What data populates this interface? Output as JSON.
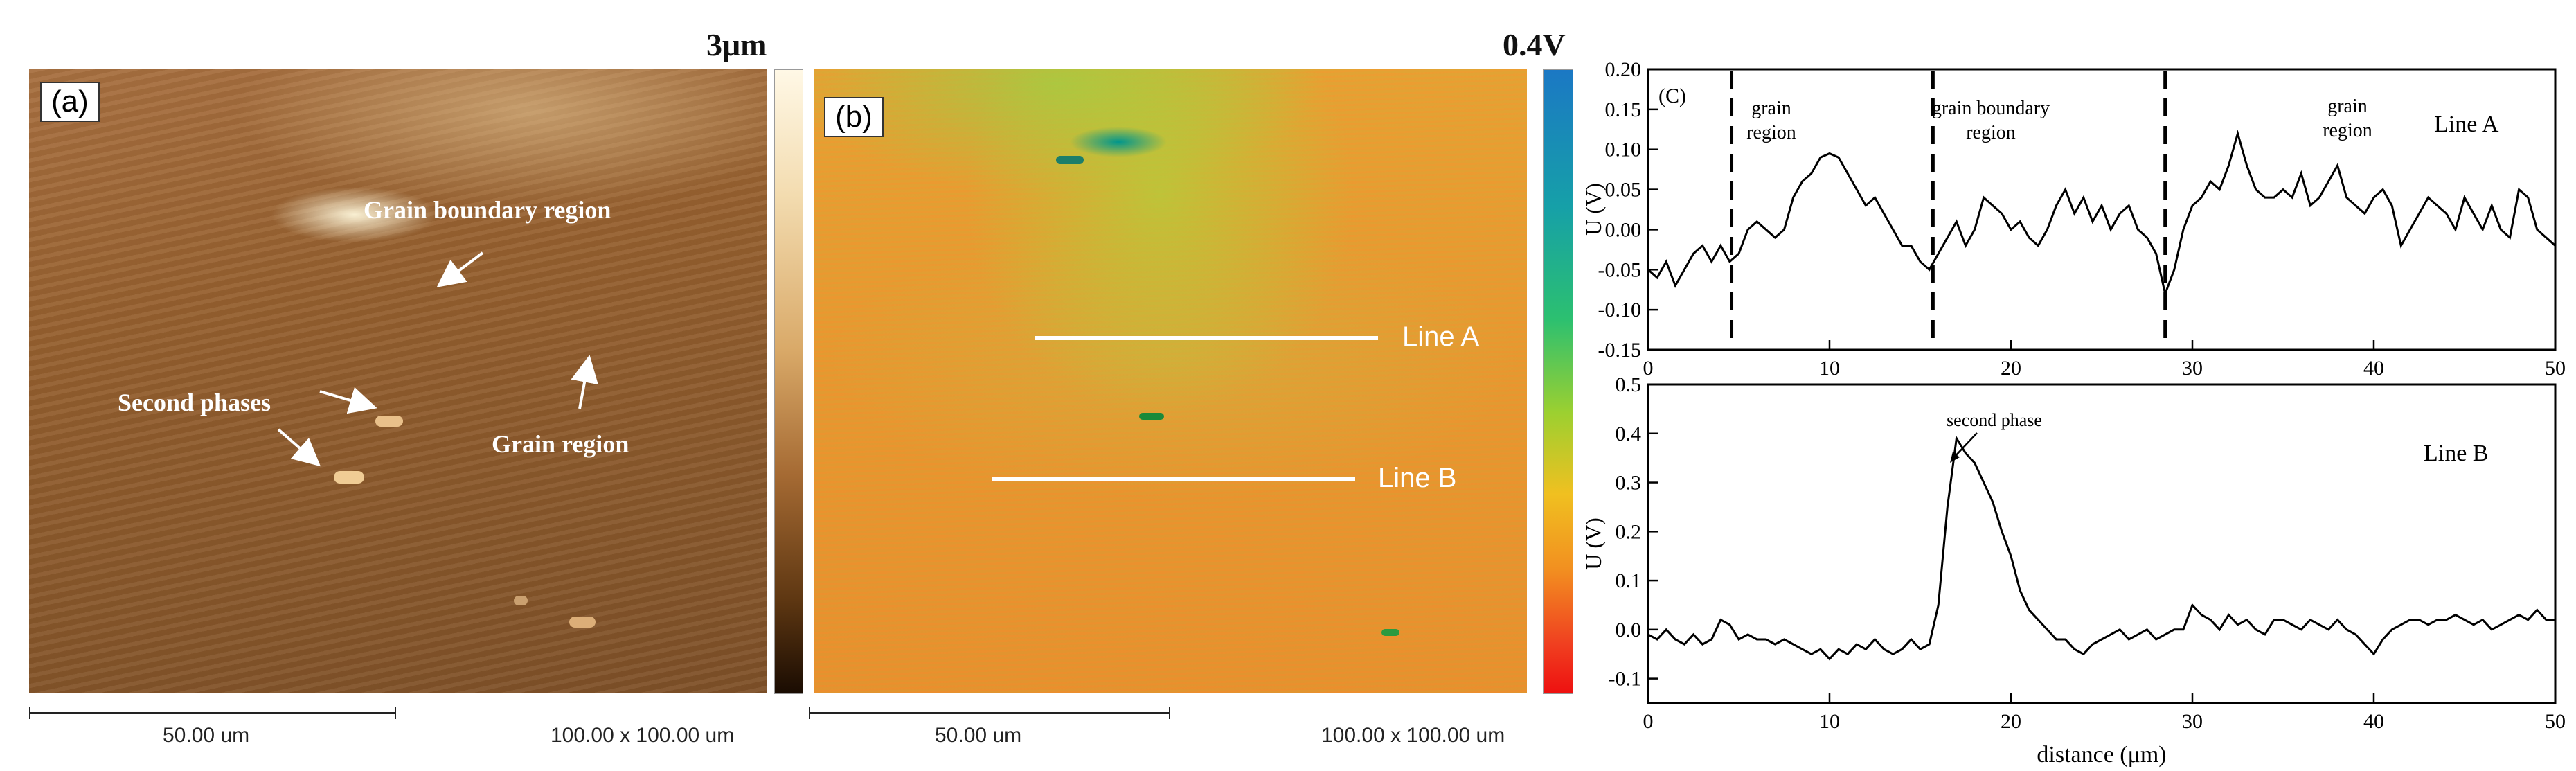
{
  "panel_a": {
    "letter": "(a)",
    "colorbar_max": "3μm",
    "labels": {
      "grain_boundary": "Grain boundary region",
      "second_phases": "Second phases",
      "grain_region": "Grain  region"
    },
    "scale_bar": "50.00 um",
    "scan_size": "100.00 x 100.00 um"
  },
  "panel_b": {
    "letter": "(b)",
    "colorbar_max": "0.4V",
    "line_a": "Line A",
    "line_b": "Line B",
    "scale_bar": "50.00 um",
    "scan_size": "100.00 x 100.00 um"
  },
  "panel_c": {
    "letter": "(C)",
    "xlabel": "distance (μm)",
    "ylabel_top": "U (V)",
    "ylabel_bottom": "U (V)",
    "top_regions": [
      {
        "line1": "grain",
        "line2": "region"
      },
      {
        "line1": "grain boundary",
        "line2": "region"
      },
      {
        "line1": "grain",
        "line2": "region"
      }
    ],
    "top_line_label": "Line A",
    "bottom_line_label": "Line B",
    "bottom_annotation": "second phase"
  },
  "chart_data": [
    {
      "type": "line",
      "xlim": [
        0,
        50
      ],
      "ylim": [
        -0.15,
        0.2
      ],
      "xticks": [
        0,
        10,
        20,
        30,
        40,
        50
      ],
      "yticks": [
        -0.15,
        -0.1,
        -0.05,
        0.0,
        0.05,
        0.1,
        0.15,
        0.2
      ],
      "dashed_lines_x": [
        4.6,
        15.7,
        28.5
      ],
      "series": [
        {
          "name": "Line A",
          "x": [
            0,
            0.5,
            1,
            1.5,
            2,
            2.5,
            3,
            3.5,
            4,
            4.5,
            5,
            5.5,
            6,
            6.5,
            7,
            7.5,
            8,
            8.5,
            9,
            9.5,
            10,
            10.5,
            11,
            11.5,
            12,
            12.5,
            13,
            13.5,
            14,
            14.5,
            15,
            15.5,
            16,
            16.5,
            17,
            17.5,
            18,
            18.5,
            19,
            19.5,
            20,
            20.5,
            21,
            21.5,
            22,
            22.5,
            23,
            23.5,
            24,
            24.5,
            25,
            25.5,
            26,
            26.5,
            27,
            27.5,
            28,
            28.5,
            29,
            29.5,
            30,
            30.5,
            31,
            31.5,
            32,
            32.5,
            33,
            33.5,
            34,
            34.5,
            35,
            35.5,
            36,
            36.5,
            37,
            37.5,
            38,
            38.5,
            39,
            39.5,
            40,
            40.5,
            41,
            41.5,
            42,
            42.5,
            43,
            43.5,
            44,
            44.5,
            45,
            45.5,
            46,
            46.5,
            47,
            47.5,
            48,
            48.5,
            49,
            49.5,
            50
          ],
          "y": [
            -0.05,
            -0.06,
            -0.04,
            -0.07,
            -0.05,
            -0.03,
            -0.02,
            -0.04,
            -0.02,
            -0.04,
            -0.03,
            0.0,
            0.01,
            0.0,
            -0.01,
            0.0,
            0.04,
            0.06,
            0.07,
            0.09,
            0.095,
            0.09,
            0.07,
            0.05,
            0.03,
            0.04,
            0.02,
            0.0,
            -0.02,
            -0.02,
            -0.04,
            -0.05,
            -0.03,
            -0.01,
            0.01,
            -0.02,
            0.0,
            0.04,
            0.03,
            0.02,
            0.0,
            0.01,
            -0.01,
            -0.02,
            0.0,
            0.03,
            0.05,
            0.02,
            0.04,
            0.01,
            0.03,
            0.0,
            0.02,
            0.03,
            0.0,
            -0.01,
            -0.03,
            -0.08,
            -0.05,
            0.0,
            0.03,
            0.04,
            0.06,
            0.05,
            0.08,
            0.12,
            0.08,
            0.05,
            0.04,
            0.04,
            0.05,
            0.04,
            0.07,
            0.03,
            0.04,
            0.06,
            0.08,
            0.04,
            0.03,
            0.02,
            0.04,
            0.05,
            0.03,
            -0.02,
            0.0,
            0.02,
            0.04,
            0.03,
            0.02,
            0.0,
            0.04,
            0.02,
            0.0,
            0.03,
            0.0,
            -0.01,
            0.05,
            0.04,
            0.0,
            -0.01,
            -0.02
          ]
        }
      ]
    },
    {
      "type": "line",
      "xlim": [
        0,
        50
      ],
      "ylim": [
        -0.15,
        0.5
      ],
      "xticks": [
        0,
        10,
        20,
        30,
        40,
        50
      ],
      "yticks": [
        -0.1,
        0.0,
        0.1,
        0.2,
        0.3,
        0.4,
        0.5
      ],
      "series": [
        {
          "name": "Line B",
          "x": [
            0,
            0.5,
            1,
            1.5,
            2,
            2.5,
            3,
            3.5,
            4,
            4.5,
            5,
            5.5,
            6,
            6.5,
            7,
            7.5,
            8,
            8.5,
            9,
            9.5,
            10,
            10.5,
            11,
            11.5,
            12,
            12.5,
            13,
            13.5,
            14,
            14.5,
            15,
            15.5,
            16,
            16.5,
            17,
            17.5,
            18,
            18.5,
            19,
            19.5,
            20,
            20.5,
            21,
            21.5,
            22,
            22.5,
            23,
            23.5,
            24,
            24.5,
            25,
            25.5,
            26,
            26.5,
            27,
            27.5,
            28,
            28.5,
            29,
            29.5,
            30,
            30.5,
            31,
            31.5,
            32,
            32.5,
            33,
            33.5,
            34,
            34.5,
            35,
            35.5,
            36,
            36.5,
            37,
            37.5,
            38,
            38.5,
            39,
            39.5,
            40,
            40.5,
            41,
            41.5,
            42,
            42.5,
            43,
            43.5,
            44,
            44.5,
            45,
            45.5,
            46,
            46.5,
            47,
            47.5,
            48,
            48.5,
            49,
            49.5,
            50
          ],
          "y": [
            -0.01,
            -0.02,
            0.0,
            -0.02,
            -0.03,
            -0.01,
            -0.03,
            -0.02,
            0.02,
            0.01,
            -0.02,
            -0.01,
            -0.02,
            -0.02,
            -0.03,
            -0.02,
            -0.03,
            -0.04,
            -0.05,
            -0.04,
            -0.06,
            -0.04,
            -0.05,
            -0.03,
            -0.04,
            -0.02,
            -0.04,
            -0.05,
            -0.04,
            -0.02,
            -0.04,
            -0.03,
            0.05,
            0.25,
            0.39,
            0.36,
            0.34,
            0.3,
            0.26,
            0.2,
            0.15,
            0.08,
            0.04,
            0.02,
            0.0,
            -0.02,
            -0.02,
            -0.04,
            -0.05,
            -0.03,
            -0.02,
            -0.01,
            0.0,
            -0.02,
            -0.01,
            0.0,
            -0.02,
            -0.01,
            0.0,
            0.0,
            0.05,
            0.03,
            0.02,
            0.0,
            0.03,
            0.01,
            0.02,
            0.0,
            -0.01,
            0.02,
            0.02,
            0.01,
            0.0,
            0.02,
            0.01,
            0.0,
            0.02,
            0.0,
            -0.01,
            -0.03,
            -0.05,
            -0.02,
            0.0,
            0.01,
            0.02,
            0.02,
            0.01,
            0.02,
            0.02,
            0.03,
            0.02,
            0.01,
            0.02,
            0.0,
            0.01,
            0.02,
            0.03,
            0.02,
            0.04,
            0.02,
            0.02
          ]
        }
      ]
    }
  ]
}
